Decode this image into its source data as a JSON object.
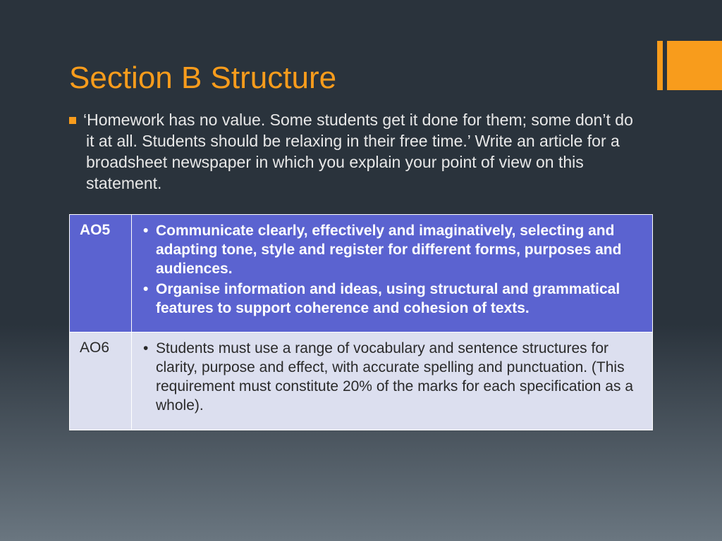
{
  "slide": {
    "title": "Section B Structure",
    "body": "‘Homework has no value. Some students get it done for them; some don’t do it at all. Students should be relaxing in their free time.’ Write an article for a broadsheet newspaper in which you explain your point of view on this statement.",
    "accent_color": "#f89c1c",
    "title_color": "#f89c1c",
    "body_color": "#e8e8e8",
    "title_fontsize": 44,
    "body_fontsize": 23
  },
  "table": {
    "header_bg": "#5b63d0",
    "header_fg": "#ffffff",
    "alt_bg": "#dcdfef",
    "alt_fg": "#2a2a2a",
    "border_color": "#ffffff",
    "fontsize": 21,
    "rows": [
      {
        "label": "AO5",
        "items": [
          "Communicate clearly, effectively and imaginatively, selecting and adapting tone, style and register for different forms, purposes and audiences.",
          "Organise information and ideas, using structural and grammatical features to support coherence and cohesion of texts."
        ]
      },
      {
        "label": "AO6",
        "items": [
          "Students must use a range of vocabulary and sentence structures for clarity, purpose and effect, with accurate spelling and punctuation. (This requirement must constitute 20% of the marks for each specification as a whole)."
        ]
      }
    ]
  }
}
